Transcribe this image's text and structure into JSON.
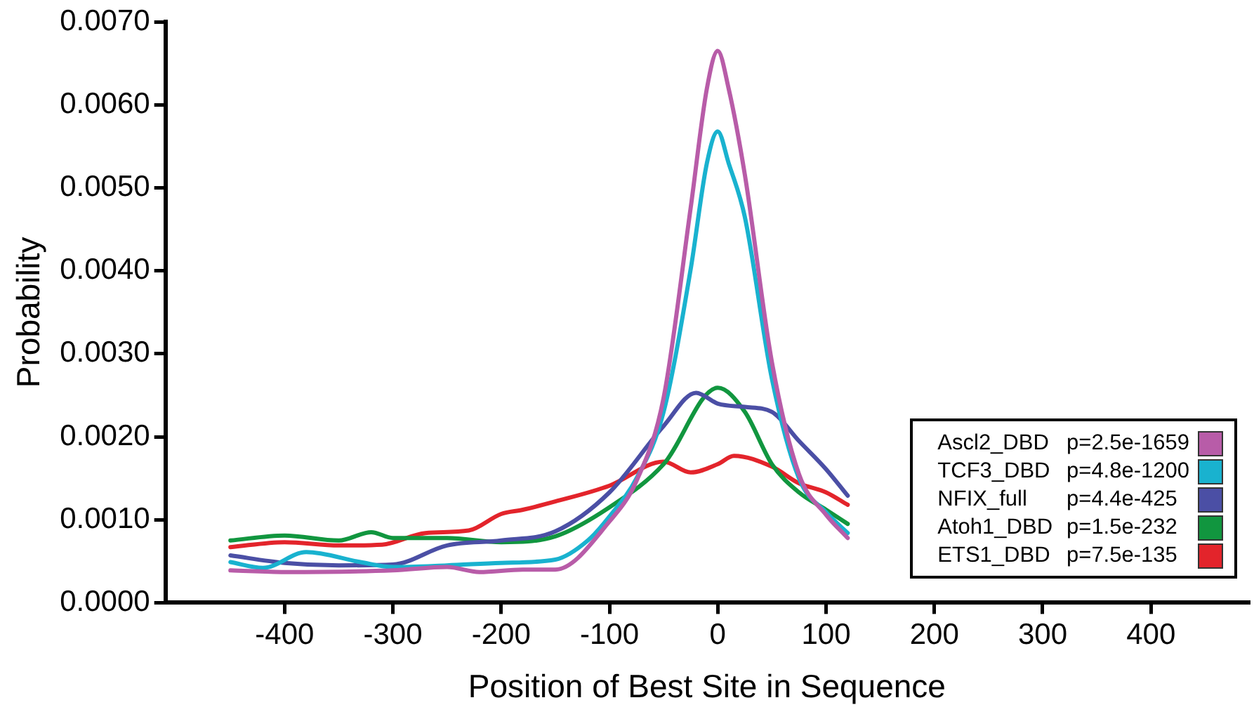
{
  "chart_data": {
    "type": "line",
    "xlabel": "Position of Best Site in Sequence",
    "ylabel": "Probability",
    "xlim": [
      -510,
      490
    ],
    "ylim": [
      0,
      0.007
    ],
    "xticks": [
      -400,
      -300,
      -200,
      -100,
      0,
      100,
      200,
      300,
      400
    ],
    "yticks": [
      {
        "value": 0,
        "label": "0.0000"
      },
      {
        "value": 0.001,
        "label": "0.0010"
      },
      {
        "value": 0.002,
        "label": "0.0020"
      },
      {
        "value": 0.003,
        "label": "0.0030"
      },
      {
        "value": 0.004,
        "label": "0.0040"
      },
      {
        "value": 0.005,
        "label": "0.0050"
      },
      {
        "value": 0.006,
        "label": "0.0060"
      },
      {
        "value": 0.007,
        "label": "0.0070"
      }
    ],
    "grid": false,
    "legend": "bottom right",
    "marker": "none",
    "line_style": "solid",
    "series": [
      {
        "name": "Ascl2_DBD p=2.5e-1659",
        "color": "#b85ca8",
        "x": [
          -450,
          -400,
          -300,
          -250,
          -220,
          -180,
          -150,
          -100,
          -75,
          -50,
          -25,
          -10,
          0,
          10,
          25,
          50,
          75,
          100,
          120
        ],
        "values": [
          0.00039,
          0.00037,
          0.00039,
          0.00043,
          0.00037,
          0.0004,
          0.0004,
          0.00098,
          0.00147,
          0.00247,
          0.00476,
          0.0062,
          0.00665,
          0.0062,
          0.00516,
          0.0029,
          0.00155,
          0.00106,
          0.00078
        ]
      },
      {
        "name": "TCF3_DBD p=4.8e-1200",
        "color": "#19b2cf",
        "x": [
          -450,
          -420,
          -380,
          -330,
          -300,
          -250,
          -200,
          -150,
          -120,
          -100,
          -75,
          -50,
          -25,
          -10,
          0,
          10,
          25,
          50,
          75,
          100,
          120
        ],
        "values": [
          0.00049,
          0.00042,
          0.00061,
          0.00049,
          0.00043,
          0.00045,
          0.00048,
          0.00052,
          0.00075,
          0.00104,
          0.0015,
          0.0023,
          0.00402,
          0.0053,
          0.00568,
          0.0053,
          0.00465,
          0.0027,
          0.0015,
          0.00109,
          0.00084
        ]
      },
      {
        "name": "NFIX_full p=4.4e-425",
        "color": "#4b4fa5",
        "x": [
          -450,
          -400,
          -350,
          -300,
          -250,
          -200,
          -150,
          -100,
          -50,
          -20,
          0,
          25,
          50,
          75,
          100,
          120
        ],
        "values": [
          0.00057,
          0.00048,
          0.00045,
          0.00046,
          0.00069,
          0.00075,
          0.00086,
          0.00133,
          0.00213,
          0.00253,
          0.0024,
          0.00236,
          0.0023,
          0.00195,
          0.00161,
          0.00129
        ]
      },
      {
        "name": "Atoh1_DBD p=1.5e-232",
        "color": "#11963f",
        "x": [
          -450,
          -400,
          -350,
          -320,
          -300,
          -250,
          -200,
          -150,
          -100,
          -50,
          0,
          25,
          50,
          75,
          100,
          120
        ],
        "values": [
          0.00075,
          0.00081,
          0.00075,
          0.00085,
          0.00078,
          0.00078,
          0.00073,
          0.0008,
          0.00115,
          0.00167,
          0.00259,
          0.0023,
          0.00167,
          0.00133,
          0.00112,
          0.00095
        ]
      },
      {
        "name": "ETS1_DBD p=7.5e-135",
        "color": "#e3242b",
        "x": [
          -450,
          -400,
          -350,
          -310,
          -270,
          -230,
          -200,
          -180,
          -150,
          -100,
          -50,
          -25,
          0,
          15,
          50,
          75,
          100,
          120
        ],
        "values": [
          0.00067,
          0.00073,
          0.00069,
          0.0007,
          0.00084,
          0.00087,
          0.00107,
          0.00112,
          0.00122,
          0.00141,
          0.0017,
          0.00157,
          0.00167,
          0.00177,
          0.00164,
          0.00144,
          0.00133,
          0.00118
        ]
      }
    ]
  }
}
